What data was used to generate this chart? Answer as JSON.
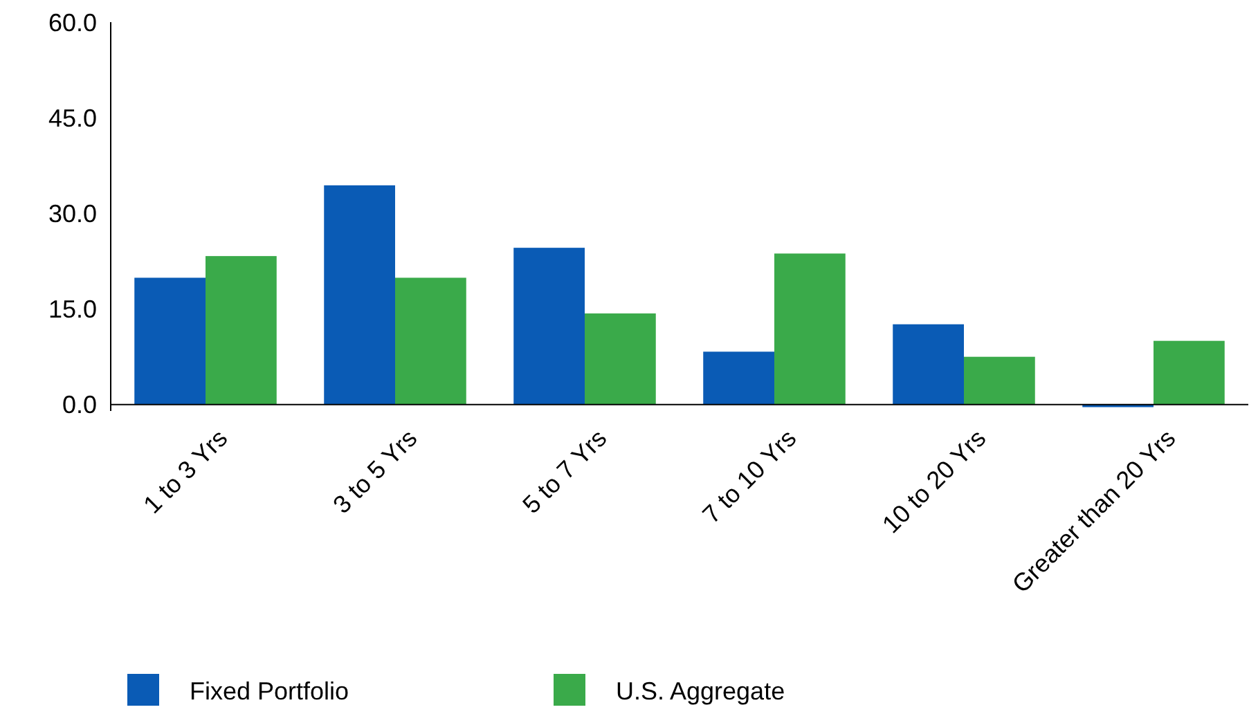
{
  "chart_data": {
    "type": "bar",
    "categories": [
      "1 to 3 Yrs",
      "3 to 5 Yrs",
      "5 to 7 Yrs",
      "7 to 10 Yrs",
      "10 to 20 Yrs",
      "Greater than 20 Yrs"
    ],
    "series": [
      {
        "name": "Fixed Portfolio",
        "color": "#0a5bb5",
        "values": [
          19.9,
          34.4,
          24.6,
          8.3,
          12.6,
          -0.4
        ]
      },
      {
        "name": "U.S. Aggregate",
        "color": "#3aaa4a",
        "values": [
          23.3,
          19.9,
          14.3,
          23.7,
          7.5,
          10.0
        ]
      }
    ],
    "ylim": [
      -1,
      60
    ],
    "yticks": [
      {
        "value": 0,
        "label": "0.0"
      },
      {
        "value": 15,
        "label": "15.0"
      },
      {
        "value": 30,
        "label": "30.0"
      },
      {
        "value": 45,
        "label": "45.0"
      },
      {
        "value": 60,
        "label": "60.0"
      }
    ],
    "grid": false,
    "legend": "bottom left"
  }
}
